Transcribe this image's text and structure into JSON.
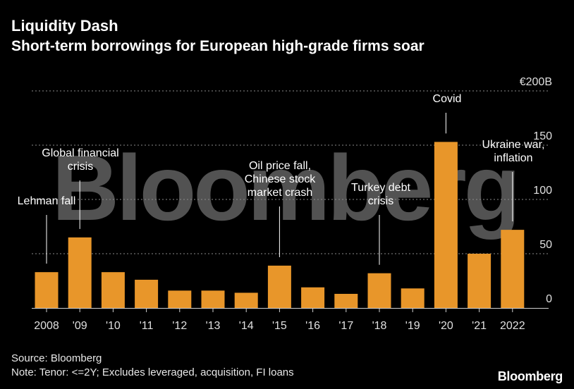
{
  "header": {
    "title": "Liquidity Dash",
    "subtitle": "Short-term borrowings for European high-grade firms soar"
  },
  "footer": {
    "source": "Source: Bloomberg",
    "note": "Note: Tenor: <=2Y; Excludes leveraged, acquisition, FI loans",
    "brand": "Bloomberg"
  },
  "watermark": "Bloomberg",
  "colors": {
    "background": "#000000",
    "bar": "#e8962a",
    "grid": "#8a8a8a",
    "text": "#ffffff"
  },
  "chart_data": {
    "type": "bar",
    "title": "Liquidity Dash",
    "subtitle": "Short-term borrowings for European high-grade firms soar",
    "xlabel": "",
    "ylabel": "",
    "unit_prefix": "€",
    "unit_suffix": "B",
    "ylim": [
      0,
      200
    ],
    "yticks": [
      0,
      50,
      100,
      150,
      200
    ],
    "ytick_labels": [
      "0",
      "50",
      "100",
      "150",
      "€200B"
    ],
    "categories": [
      "2008",
      "'09",
      "'10",
      "'11",
      "'12",
      "'13",
      "'14",
      "'15",
      "'16",
      "'17",
      "'18",
      "'19",
      "'20",
      "'21",
      "2022"
    ],
    "values": [
      33,
      65,
      33,
      26,
      16,
      16,
      14,
      39,
      19,
      13,
      32,
      18,
      153,
      50,
      72
    ],
    "grid": true,
    "annotations": [
      {
        "category_index": 0,
        "lines": [
          "Lehman fall"
        ]
      },
      {
        "category_index": 1,
        "lines": [
          "Global financial",
          "crisis"
        ]
      },
      {
        "category_index": 7,
        "lines": [
          "Oil price fall,",
          "Chinese stock",
          "market crash"
        ]
      },
      {
        "category_index": 10,
        "lines": [
          "Turkey debt",
          "crisis"
        ]
      },
      {
        "category_index": 12,
        "lines": [
          "Covid"
        ]
      },
      {
        "category_index": 14,
        "lines": [
          "Ukraine war,",
          "inflation"
        ]
      }
    ]
  }
}
